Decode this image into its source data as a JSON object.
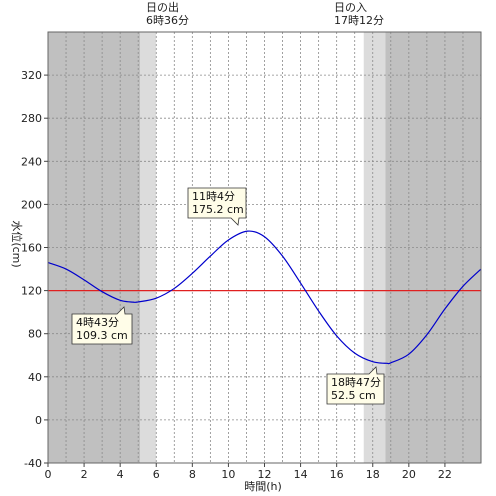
{
  "chart_data": {
    "type": "line",
    "xlabel": "時間(h)",
    "ylabel": "水位(cm)",
    "xlim": [
      0,
      24
    ],
    "ylim": [
      -40,
      360
    ],
    "x_ticks": [
      0,
      2,
      4,
      6,
      8,
      10,
      12,
      14,
      16,
      18,
      20,
      22
    ],
    "y_ticks": [
      -40,
      0,
      40,
      80,
      120,
      160,
      200,
      240,
      280,
      320
    ],
    "reference_line": {
      "value": 120,
      "color": "#e02020"
    },
    "series": [
      {
        "color": "#0000cc",
        "x": [
          0,
          1,
          2,
          3,
          4,
          4.717,
          5,
          6,
          7,
          8,
          9,
          10,
          11.067,
          12,
          13,
          14,
          15,
          16,
          17,
          18,
          18.783,
          19,
          20,
          21,
          22,
          23,
          24
        ],
        "values": [
          146,
          140,
          130,
          119,
          111,
          109.3,
          109.5,
          113,
          122,
          136,
          152,
          167,
          175.2,
          170,
          152,
          127,
          101,
          78,
          62,
          54,
          52.5,
          53,
          61,
          79,
          103,
          124,
          140
        ]
      }
    ],
    "sunrise": {
      "label": "日の出",
      "time_label": "6時36分",
      "hour": 6.6
    },
    "sunset": {
      "label": "日の入",
      "time_label": "17時12分",
      "hour": 17.2
    },
    "shading": {
      "night_color": "#c0c0c0",
      "twilight_color": "#dcdcdc",
      "day_color": "#ffffff",
      "night_end": 5.1,
      "dawn_end": 6.0,
      "dusk_start": 17.5,
      "night_start": 18.7
    },
    "annotations": [
      {
        "time_label": "4時43分",
        "value_label": "109.3 cm",
        "x": 4.717,
        "y": 109.3
      },
      {
        "time_label": "11時4分",
        "value_label": "175.2 cm",
        "x": 11.067,
        "y": 175.2
      },
      {
        "time_label": "18時47分",
        "value_label": "52.5 cm",
        "x": 18.783,
        "y": 52.5
      }
    ]
  }
}
